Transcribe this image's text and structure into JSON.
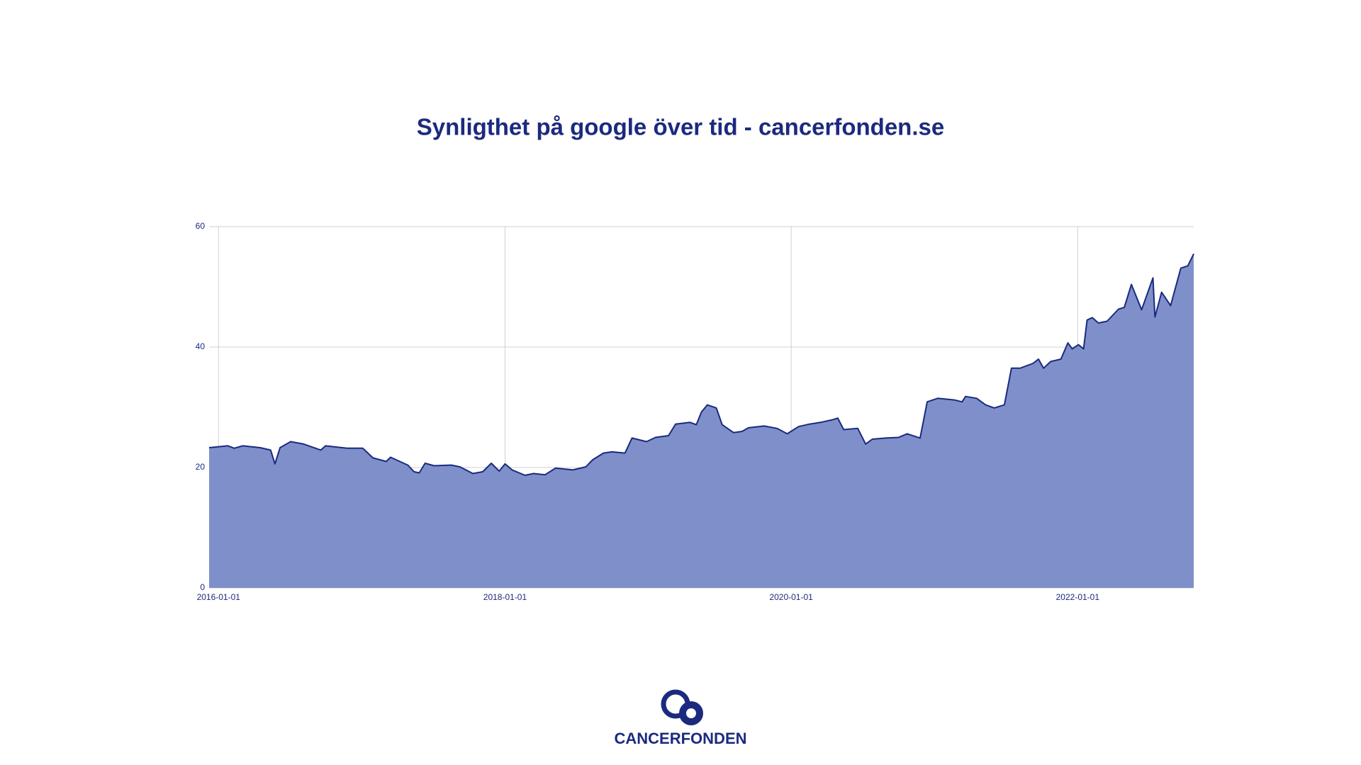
{
  "chart_data": {
    "type": "area",
    "title": "Synligthet på google över tid - cancerfonden.se",
    "x": [
      "2015-12-08",
      "2016-01-25",
      "2016-02-10",
      "2016-03-03",
      "2016-04-16",
      "2016-05-13",
      "2016-05-24",
      "2016-06-06",
      "2016-07-03",
      "2016-08-05",
      "2016-09-18",
      "2016-09-30",
      "2016-11-24",
      "2017-01-03",
      "2017-01-29",
      "2017-03-04",
      "2017-03-15",
      "2017-04-28",
      "2017-05-14",
      "2017-05-27",
      "2017-06-11",
      "2017-07-04",
      "2017-08-17",
      "2017-09-08",
      "2017-10-11",
      "2017-11-05",
      "2017-11-27",
      "2017-12-17",
      "2018-01-01",
      "2018-01-19",
      "2018-02-21",
      "2018-03-15",
      "2018-04-13",
      "2018-05-10",
      "2018-06-23",
      "2018-07-26",
      "2018-08-13",
      "2018-09-09",
      "2018-10-01",
      "2018-11-03",
      "2018-11-21",
      "2018-12-28",
      "2019-01-20",
      "2019-02-22",
      "2019-03-12",
      "2019-04-18",
      "2019-05-04",
      "2019-05-17",
      "2019-06-01",
      "2019-06-24",
      "2019-07-09",
      "2019-08-07",
      "2019-08-29",
      "2019-09-14",
      "2019-10-24",
      "2019-11-26",
      "2019-12-22",
      "2020-01-20",
      "2020-02-16",
      "2020-03-16",
      "2020-04-13",
      "2020-04-29",
      "2020-05-14",
      "2020-06-19",
      "2020-07-09",
      "2020-07-26",
      "2020-08-29",
      "2020-10-01",
      "2020-10-23",
      "2020-11-25",
      "2020-12-13",
      "2021-01-09",
      "2021-02-22",
      "2021-03-12",
      "2021-03-21",
      "2021-04-18",
      "2021-05-11",
      "2021-06-02",
      "2021-06-28",
      "2021-07-16",
      "2021-08-07",
      "2021-09-09",
      "2021-09-23",
      "2021-10-06",
      "2021-10-24",
      "2021-11-19",
      "2021-12-07",
      "2021-12-18",
      "2022-01-03",
      "2022-01-16",
      "2022-01-25",
      "2022-02-07",
      "2022-02-23",
      "2022-03-17",
      "2022-04-15",
      "2022-04-30",
      "2022-05-18",
      "2022-06-13",
      "2022-06-29",
      "2022-07-12",
      "2022-07-17",
      "2022-08-03",
      "2022-08-26",
      "2022-09-21",
      "2022-10-09",
      "2022-10-24"
    ],
    "values": [
      23.3,
      23.6,
      23.2,
      23.6,
      23.3,
      22.9,
      20.6,
      23.3,
      24.3,
      23.9,
      22.9,
      23.6,
      23.2,
      23.2,
      21.6,
      21.0,
      21.7,
      20.4,
      19.3,
      19.1,
      20.7,
      20.3,
      20.4,
      20.1,
      19.0,
      19.3,
      20.7,
      19.4,
      20.6,
      19.6,
      18.7,
      19.0,
      18.8,
      19.9,
      19.6,
      20.1,
      21.3,
      22.4,
      22.6,
      22.4,
      24.9,
      24.3,
      25.0,
      25.3,
      27.2,
      27.5,
      27.1,
      29.2,
      30.4,
      29.9,
      27.1,
      25.8,
      26.0,
      26.6,
      26.9,
      26.5,
      25.6,
      26.8,
      27.2,
      27.5,
      27.9,
      28.2,
      26.3,
      26.5,
      23.9,
      24.7,
      24.9,
      25.0,
      25.6,
      24.9,
      30.9,
      31.5,
      31.2,
      30.9,
      31.8,
      31.5,
      30.4,
      29.9,
      30.4,
      36.5,
      36.5,
      37.3,
      38.0,
      36.5,
      37.6,
      38.0,
      40.7,
      39.7,
      40.4,
      39.7,
      44.5,
      44.9,
      44.0,
      44.3,
      46.3,
      46.6,
      50.4,
      46.2,
      49.1,
      51.5,
      45.0,
      49.1,
      46.9,
      53.1,
      53.5,
      55.5
    ],
    "color": "#1b2a7e",
    "fill_color": "#7f8fca",
    "xlim": [
      "2015-12-08",
      "2022-10-24"
    ],
    "xticks": [
      "2016-01-01",
      "2018-01-01",
      "2020-01-01",
      "2022-01-01"
    ],
    "ylim": [
      0,
      60
    ],
    "yticks": [
      0,
      20,
      40,
      60
    ],
    "grid": true
  },
  "logo_text": "CANCERFONDEN"
}
